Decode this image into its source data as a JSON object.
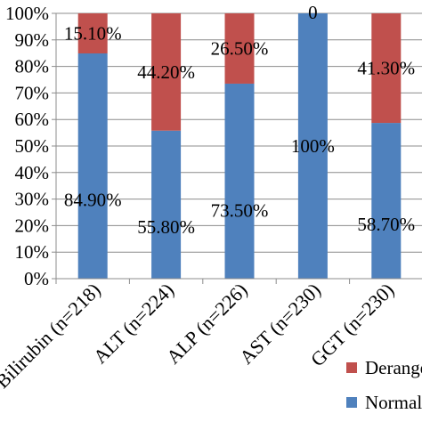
{
  "chart_data": {
    "type": "bar",
    "stacked": true,
    "orientation": "vertical",
    "categories": [
      "Bilirubin (n=218)",
      "ALT (n=224)",
      "ALP (n=226)",
      "AST (n=230)",
      "GGT (n=230)"
    ],
    "series": [
      {
        "name": "Normal",
        "color": "#4F81BD",
        "values": [
          84.9,
          55.8,
          73.5,
          100,
          58.7
        ],
        "labels": [
          "84.90%",
          "55.80%",
          "73.50%",
          "100%",
          "58.70%"
        ]
      },
      {
        "name": "Deranged",
        "color": "#C0504D",
        "values": [
          15.1,
          44.2,
          26.5,
          0,
          41.3
        ],
        "labels": [
          "15.10%",
          "44.20%",
          "26.50%",
          "0",
          "41.30%"
        ]
      }
    ],
    "y_ticks": [
      "0%",
      "10%",
      "20%",
      "30%",
      "40%",
      "50%",
      "60%",
      "70%",
      "80%",
      "90%",
      "100%"
    ],
    "ylim": [
      0,
      100
    ],
    "grid": true,
    "legend_position": "bottom-right",
    "legend_order": [
      "Deranged",
      "Normal"
    ],
    "legend_visible_text": [
      "Derange",
      "Normal"
    ]
  }
}
